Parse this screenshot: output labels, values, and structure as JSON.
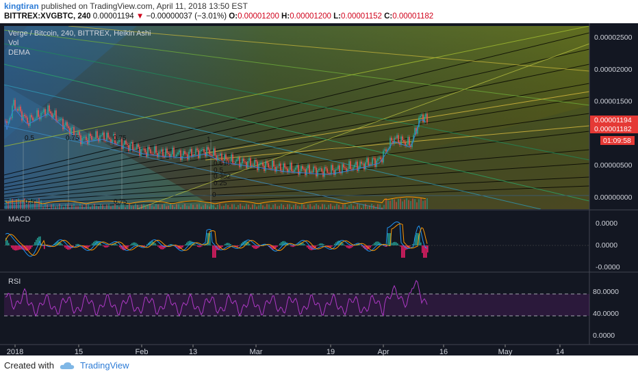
{
  "header": {
    "user": "kingtiran",
    "published_text": "published on TradingView.com, April 11, 2018 13:50 EST"
  },
  "ohlc_bar": {
    "symbol": "BITTREX:XVGBTC, 240",
    "last": "0.00001194",
    "change": "−0.00000037 (−3.01%)",
    "o_label": "O:",
    "o_value": "0.00001200",
    "h_label": "H:",
    "h_value": "0.00001200",
    "l_label": "L:",
    "l_value": "0.00001152",
    "c_label": "C:",
    "c_value": "0.00001182"
  },
  "legend": {
    "title": "Verge / Bitcoin, 240, BITTREX, Heikin Ashi",
    "vol": "Vol",
    "dema": "DEMA"
  },
  "price_axis": {
    "ticks": [
      "0.00002500",
      "0.00002000",
      "0.00001500",
      "0.00000500",
      "0.00000000"
    ],
    "badge_last": "0.00001194",
    "badge_close": "0.00001182",
    "badge_timer": "01:09:58"
  },
  "macd": {
    "title": "MACD",
    "ticks": [
      "0.0000",
      "0.0000",
      "-0.0000"
    ]
  },
  "rsi": {
    "title": "RSI",
    "ticks": [
      "80.0000",
      "40.0000",
      "0.0000"
    ]
  },
  "time_axis": {
    "labels": [
      "2018",
      "15",
      "Feb",
      "13",
      "Mar",
      "19",
      "Apr",
      "16",
      "May",
      "14"
    ]
  },
  "fib_labels": {
    "left": [
      "0.5",
      "0.75"
    ],
    "left_mid": "0.75",
    "center": [
      "1",
      "0.618",
      "0.5",
      "0.382",
      "0.25",
      "0"
    ],
    "bottom_left": [
      "0.5",
      "0.75"
    ]
  },
  "footer": {
    "created_with": "Created with",
    "brand": "TradingView"
  },
  "colors": {
    "bg": "#131722",
    "up": "#26a69a",
    "down": "#ef5350",
    "macd": "#2196f3",
    "signal": "#ff9800",
    "rsi": "#9c27b0",
    "badge": "#e53935"
  },
  "chart_data": {
    "type": "candlestick",
    "title": "Verge / Bitcoin, 240, BITTREX, Heikin Ashi",
    "price_approx": {
      "x_dates": [
        "2018-01-01",
        "2018-01-07",
        "2018-01-15",
        "2018-01-22",
        "2018-02-01",
        "2018-02-10",
        "2018-02-20",
        "2018-03-01",
        "2018-03-10",
        "2018-03-19",
        "2018-03-26",
        "2018-04-01",
        "2018-04-08",
        "2018-04-11"
      ],
      "close": [
        1.45e-05,
        1.28e-05,
        9.8e-06,
        8.5e-06,
        7.2e-06,
        6.8e-06,
        7.1e-06,
        5.8e-06,
        4.6e-06,
        4e-06,
        5.2e-06,
        8.2e-06,
        1.22e-05,
        1.182e-05
      ]
    },
    "ylim": [
      0.0,
      2.65e-05
    ],
    "rsi_levels": [
      70,
      30
    ]
  }
}
